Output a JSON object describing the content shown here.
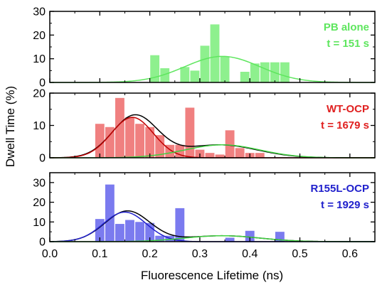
{
  "chart_data": {
    "type": "bar",
    "xlabel": "Fluorescence Lifetime (ns)",
    "ylabel": "Dwell Time (%)",
    "xlim": [
      0.0,
      0.65
    ],
    "x_ticks": [
      "0.0",
      "0.1",
      "0.2",
      "0.3",
      "0.4",
      "0.5",
      "0.6"
    ],
    "bin_width": 0.02,
    "panels": [
      {
        "label_line1": "PB alone",
        "label_line2": "t = 151 s",
        "color": "#5ee65e",
        "bar_fill": "#8ef08e",
        "ylim": [
          0,
          30
        ],
        "y_ticks": [
          "0",
          "10",
          "20",
          "30"
        ],
        "bars": [
          {
            "x": 0.21,
            "value": 11.5
          },
          {
            "x": 0.23,
            "value": 6
          },
          {
            "x": 0.27,
            "value": 6.5
          },
          {
            "x": 0.29,
            "value": 5
          },
          {
            "x": 0.31,
            "value": 15.5
          },
          {
            "x": 0.33,
            "value": 24.5
          },
          {
            "x": 0.35,
            "value": 11
          },
          {
            "x": 0.39,
            "value": 4.5
          },
          {
            "x": 0.41,
            "value": 8
          },
          {
            "x": 0.43,
            "value": 8.5
          },
          {
            "x": 0.45,
            "value": 8.5
          },
          {
            "x": 0.47,
            "value": 8.5
          }
        ],
        "fits": [
          {
            "color": "#5ee65e",
            "components": [
              {
                "amp": 11,
                "mu": 0.345,
                "sigma": 0.075
              }
            ]
          }
        ]
      },
      {
        "label_line1": "WT-OCP",
        "label_line2": "t = 1679 s",
        "color": "#e02020",
        "bar_fill": "#f08080",
        "ylim": [
          0,
          20
        ],
        "y_ticks": [
          "0",
          "10",
          "20"
        ],
        "bars": [
          {
            "x": 0.1,
            "value": 10.5
          },
          {
            "x": 0.12,
            "value": 9.5
          },
          {
            "x": 0.14,
            "value": 18.5
          },
          {
            "x": 0.16,
            "value": 12.5
          },
          {
            "x": 0.18,
            "value": 10.5
          },
          {
            "x": 0.2,
            "value": 9.5
          },
          {
            "x": 0.22,
            "value": 7
          },
          {
            "x": 0.24,
            "value": 4
          },
          {
            "x": 0.26,
            "value": 4
          },
          {
            "x": 0.28,
            "value": 15.5
          },
          {
            "x": 0.3,
            "value": 2.5
          },
          {
            "x": 0.32,
            "value": 1.5
          },
          {
            "x": 0.34,
            "value": 1
          },
          {
            "x": 0.36,
            "value": 8.5
          },
          {
            "x": 0.38,
            "value": 3
          },
          {
            "x": 0.4,
            "value": 1.5
          },
          {
            "x": 0.42,
            "value": 1.5
          }
        ],
        "fits": [
          {
            "color": "#000000",
            "components": [
              {
                "amp": 13,
                "mu": 0.17,
                "sigma": 0.045
              },
              {
                "amp": 4,
                "mu": 0.34,
                "sigma": 0.075
              }
            ]
          },
          {
            "color": "#c00000",
            "components": [
              {
                "amp": 12.5,
                "mu": 0.165,
                "sigma": 0.042
              }
            ]
          },
          {
            "color": "#40d040",
            "components": [
              {
                "amp": 4,
                "mu": 0.345,
                "sigma": 0.075
              }
            ]
          }
        ]
      },
      {
        "label_line1": "R155L-OCP",
        "label_line2": "t = 1929 s",
        "color": "#2020cc",
        "bar_fill": "#7b7bef",
        "ylim": [
          0,
          35
        ],
        "y_ticks": [
          "0",
          "10",
          "20",
          "30"
        ],
        "bars": [
          {
            "x": 0.1,
            "value": 11.5
          },
          {
            "x": 0.12,
            "value": 29
          },
          {
            "x": 0.14,
            "value": 9
          },
          {
            "x": 0.16,
            "value": 11
          },
          {
            "x": 0.18,
            "value": 10
          },
          {
            "x": 0.2,
            "value": 9.5
          },
          {
            "x": 0.22,
            "value": 3
          },
          {
            "x": 0.24,
            "value": 3
          },
          {
            "x": 0.26,
            "value": 17
          },
          {
            "x": 0.36,
            "value": 2
          },
          {
            "x": 0.4,
            "value": 5.5
          },
          {
            "x": 0.46,
            "value": 5
          }
        ],
        "fits": [
          {
            "color": "#000000",
            "components": [
              {
                "amp": 15.5,
                "mu": 0.155,
                "sigma": 0.045
              },
              {
                "amp": 3,
                "mu": 0.345,
                "sigma": 0.075
              }
            ]
          },
          {
            "color": "#2020cc",
            "components": [
              {
                "amp": 15,
                "mu": 0.15,
                "sigma": 0.043
              }
            ]
          },
          {
            "color": "#40d040",
            "components": [
              {
                "amp": 3,
                "mu": 0.345,
                "sigma": 0.075
              }
            ]
          }
        ]
      }
    ]
  }
}
